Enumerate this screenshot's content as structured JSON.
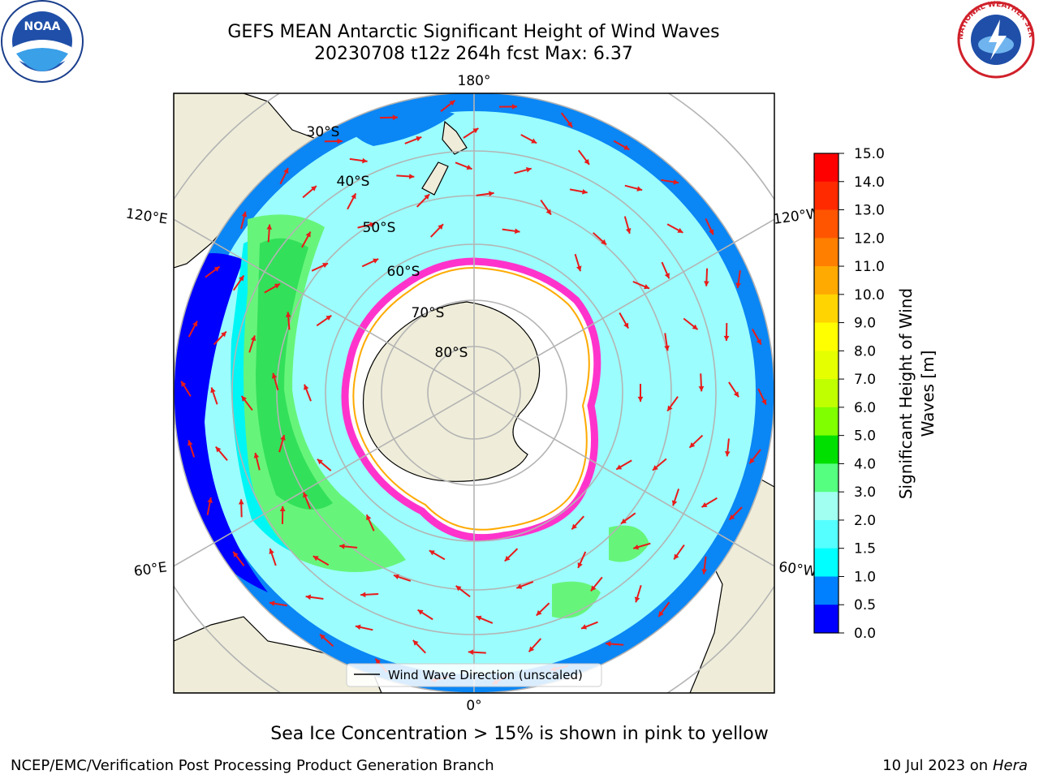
{
  "title": {
    "line1": "GEFS MEAN Antarctic Significant Height of Wind Waves",
    "line2": "20230708 t12z 264h fcst   Max: 6.37"
  },
  "map": {
    "projection": "south-polar-stereographic",
    "longitude_labels": [
      "180°",
      "120°E",
      "120°W",
      "60°E",
      "60°W",
      "0°"
    ],
    "latitude_labels": [
      "30°S",
      "40°S",
      "50°S",
      "60°S",
      "70°S",
      "80°S"
    ],
    "legend_label": "Wind Wave Direction (unscaled)",
    "colors": {
      "land": "#efedd9",
      "ice_edge_outer": "#ff33cc",
      "ice_edge_inner": "#ffaa00",
      "arrow": "#e81b1b",
      "grid": "#b4b4b4"
    }
  },
  "colorbar": {
    "label_line1": "Significant Height of Wind",
    "label_line2": "Waves [m]",
    "ticks": [
      "15.0",
      "14.0",
      "13.0",
      "12.0",
      "11.0",
      "10.0",
      "9.0",
      "8.0",
      "7.0",
      "6.0",
      "5.0",
      "4.0",
      "3.0",
      "2.0",
      "1.5",
      "1.0",
      "0.5",
      "0.0"
    ],
    "colors_top_to_bottom": [
      "#ff0000",
      "#ff2a00",
      "#ff5500",
      "#ff7f00",
      "#ffaa00",
      "#ffd400",
      "#ffff00",
      "#e5ff00",
      "#c0ff00",
      "#80ff00",
      "#00e000",
      "#55ff80",
      "#a0fff0",
      "#55ffff",
      "#00ffff",
      "#0080ff",
      "#0000ff"
    ]
  },
  "logos": {
    "left": "NOAA",
    "right_ring_text": "NATIONAL WEATHER SERVICE"
  },
  "note": "Sea Ice Concentration > 15% is shown in pink to yellow",
  "footer": {
    "left": "NCEP/EMC/Verification Post Processing Product Generation Branch",
    "right_date": "10 Jul 2023 on",
    "right_system": "Hera"
  }
}
